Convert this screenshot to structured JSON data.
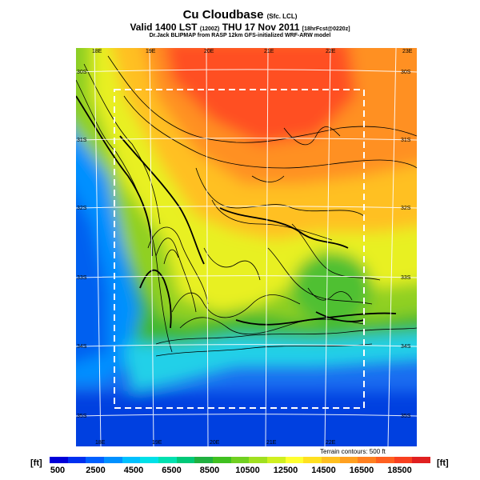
{
  "header": {
    "title": "Cu Cloudbase",
    "title_suffix": "(Sfc. LCL)",
    "valid_line": "Valid 1400 LST",
    "valid_code": "(1200Z)",
    "valid_date": "THU 17 Nov 2011",
    "valid_tail": "[18hrFcst@0220z]",
    "source_line": "Dr.Jack BLIPMAP from RASP 12km GFS-initialized WRF-ARW model"
  },
  "map": {
    "lon_labels_top": [
      "18E",
      "19E",
      "20E",
      "21E",
      "22E",
      "23E"
    ],
    "lon_labels_bottom": [
      "18E",
      "19E",
      "20E",
      "21E",
      "22E"
    ],
    "lat_labels_left": [
      "30S",
      "31S",
      "32S",
      "33S",
      "34S",
      "35S"
    ],
    "lat_labels_right": [
      "30S",
      "31S",
      "32S",
      "33S",
      "34S",
      "35S"
    ],
    "terrain_note": "Terrain contours: 500 ft"
  },
  "legend": {
    "unit_left": "[ft]",
    "unit_right": "[ft]",
    "ticks": [
      "500",
      "2500",
      "4500",
      "6500",
      "8500",
      "10500",
      "12500",
      "14500",
      "16500",
      "18500"
    ],
    "colors": [
      "#0000d8",
      "#0030f0",
      "#0060ff",
      "#0090ff",
      "#00c0ff",
      "#00e0e8",
      "#00e0b0",
      "#00c878",
      "#20b040",
      "#40c020",
      "#70d020",
      "#a0e020",
      "#d0f020",
      "#ffff30",
      "#ffe020",
      "#ffc020",
      "#ffa020",
      "#ff8020",
      "#ff6020",
      "#f84020",
      "#e02020"
    ]
  }
}
